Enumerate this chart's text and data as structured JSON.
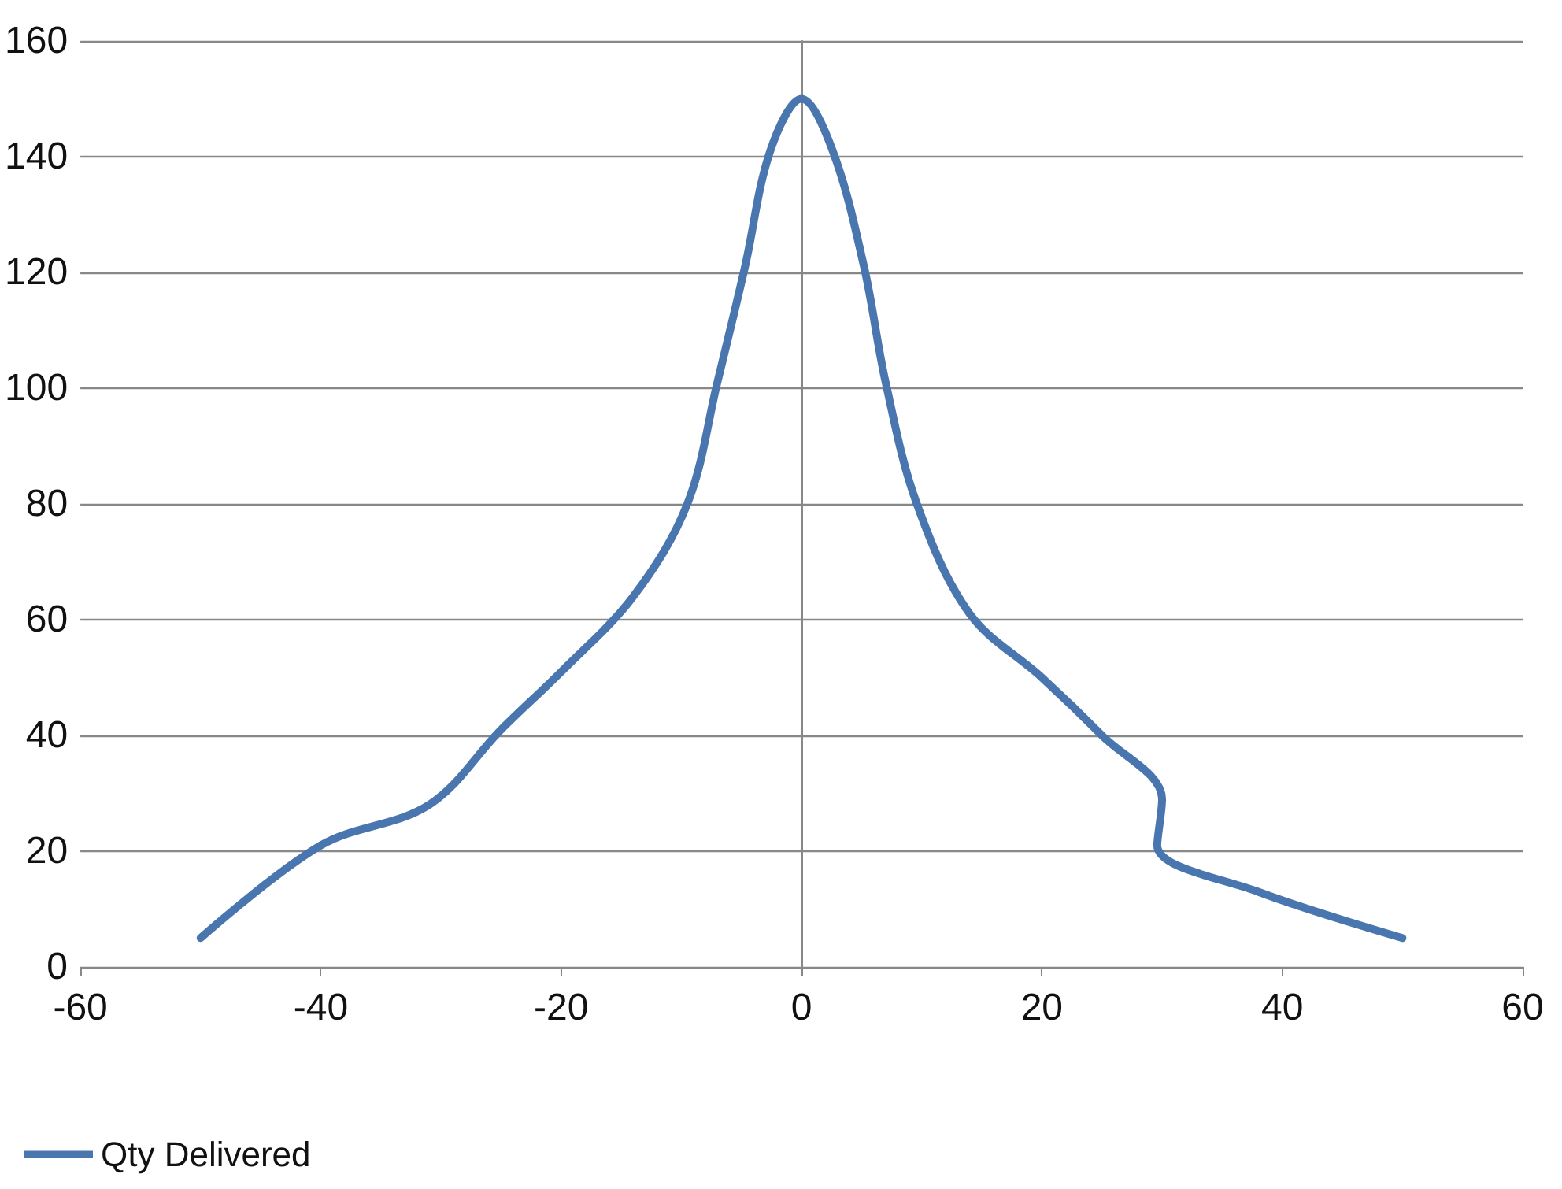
{
  "chart_data": {
    "type": "line",
    "x": [
      -50,
      -40,
      -31,
      -25,
      -20,
      -14,
      -9.5,
      -7,
      -4.7,
      -2.6,
      0,
      2.6,
      5.2,
      7,
      9.6,
      14,
      20,
      25,
      30,
      29.6,
      38,
      50
    ],
    "series": [
      {
        "name": "Qty Delivered",
        "color": "#4a76b0",
        "values": [
          5,
          21,
          28,
          41,
          51,
          64,
          80,
          101,
          121,
          141,
          150,
          141,
          121,
          101,
          80,
          61,
          50,
          40,
          29,
          21,
          13,
          5
        ]
      }
    ],
    "xlim": [
      -60,
      60
    ],
    "xticks": [
      -60,
      -40,
      -20,
      0,
      20,
      40,
      60
    ],
    "ylim": [
      0,
      160
    ],
    "yticks": [
      0,
      20,
      40,
      60,
      80,
      100,
      120,
      140,
      160
    ],
    "grid": "y",
    "legend": "bottom left",
    "marker": "none",
    "line_style": "solid"
  }
}
